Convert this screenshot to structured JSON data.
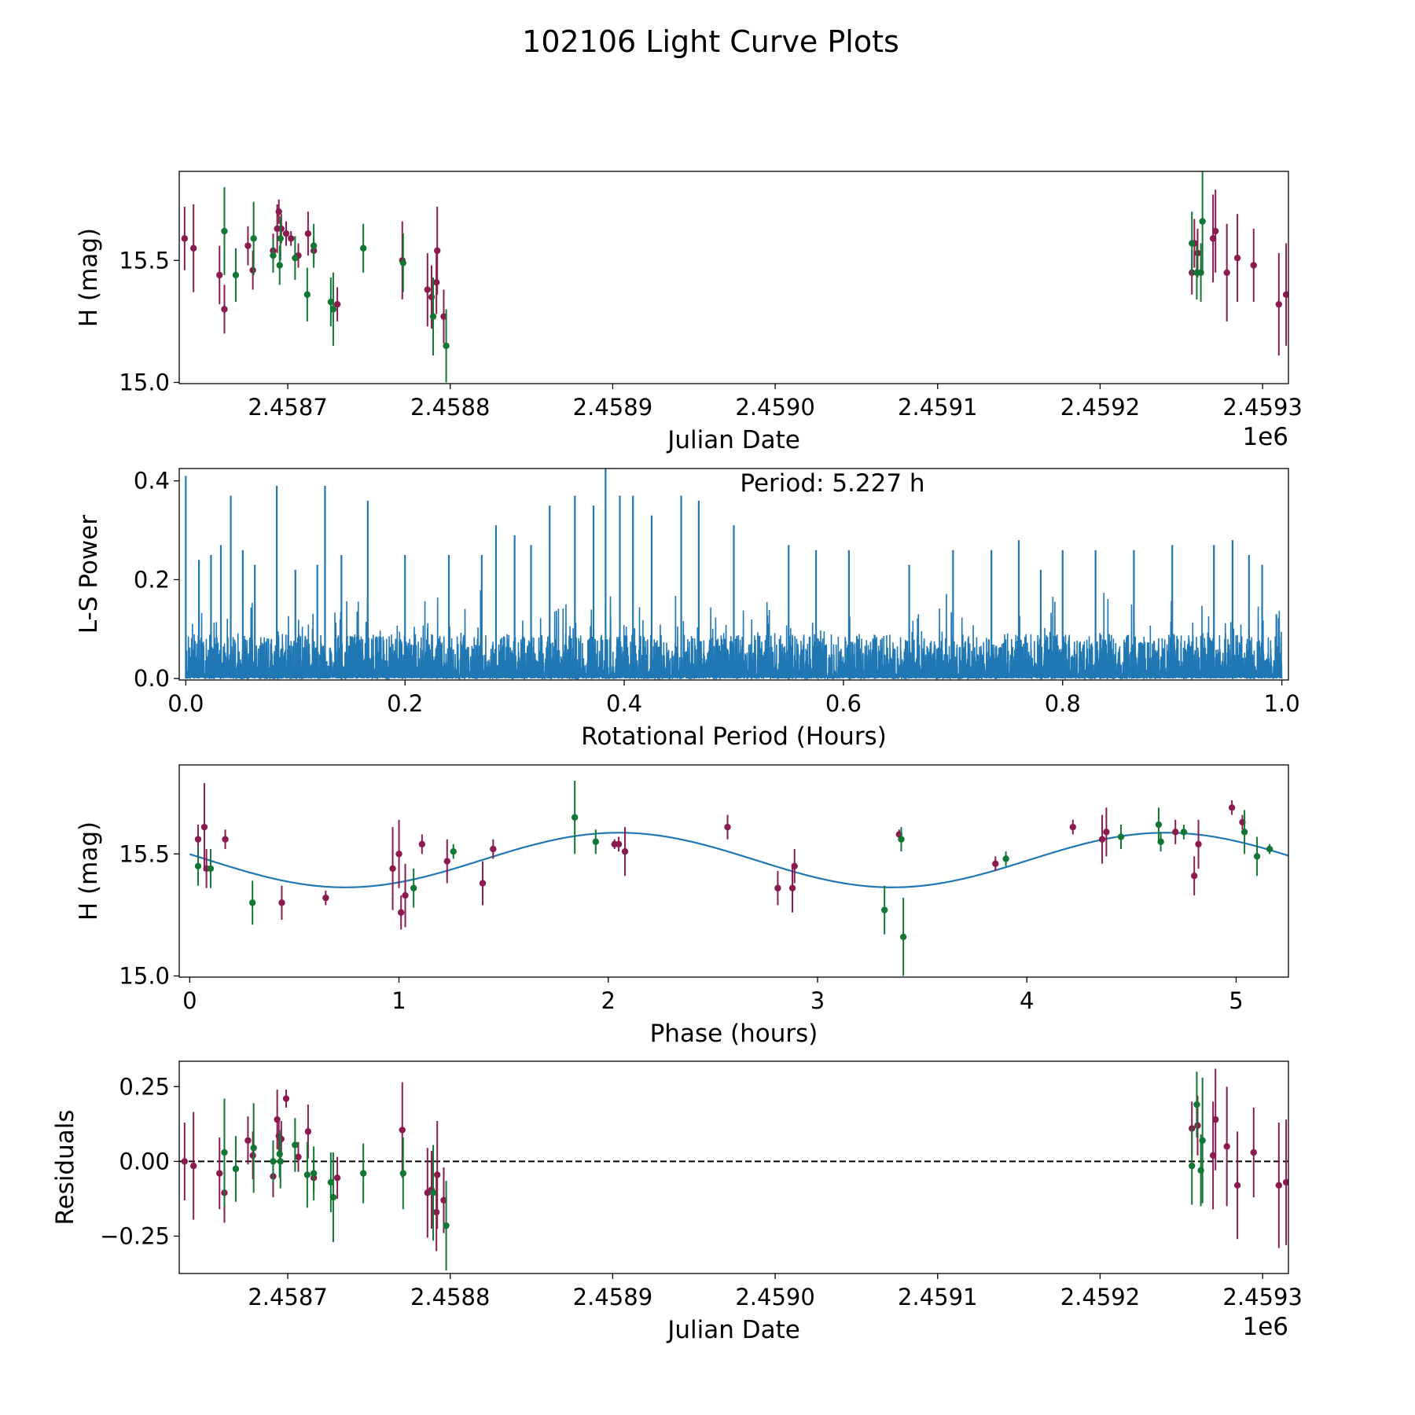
{
  "figure_title": "102106 Light Curve Plots",
  "colors": {
    "maroon": "#8b1a4e",
    "green": "#117733",
    "line": "#1f77b4",
    "axis": "#000000"
  },
  "chart_data": [
    {
      "id": "raw",
      "type": "scatter",
      "xlabel": "Julian Date",
      "ylabel": "H (mag)",
      "offset_label": "1e6",
      "xlim": [
        2458633.2,
        2459315.9
      ],
      "ylim": [
        14.995,
        15.865
      ],
      "xticks": [
        2458700,
        2458800,
        2458900,
        2459000,
        2459100,
        2459200,
        2459300
      ],
      "xtick_labels": [
        "2.4587",
        "2.4588",
        "2.4589",
        "2.4590",
        "2.4591",
        "2.4592",
        "2.4593"
      ],
      "yticks": [
        15.0,
        15.5
      ],
      "ytick_labels": [
        "15.0",
        "15.5"
      ],
      "series": [
        {
          "name": "maroon",
          "color": "maroon",
          "points": [
            [
              2458636.5,
              15.59,
              0.13
            ],
            [
              2458642.0,
              15.55,
              0.18
            ],
            [
              2458658.0,
              15.44,
              0.12
            ],
            [
              2458661.0,
              15.3,
              0.1
            ],
            [
              2458675.5,
              15.56,
              0.08
            ],
            [
              2458678.5,
              15.46,
              0.08
            ],
            [
              2458691.0,
              15.54,
              0.07
            ],
            [
              2458693.5,
              15.63,
              0.1
            ],
            [
              2458694.5,
              15.7,
              0.05
            ],
            [
              2458696.0,
              15.63,
              0.06
            ],
            [
              2458699.0,
              15.61,
              0.05
            ],
            [
              2458702.0,
              15.59,
              0.03
            ],
            [
              2458706.5,
              15.52,
              0.05
            ],
            [
              2458712.5,
              15.61,
              0.09
            ],
            [
              2458716.0,
              15.54,
              0.05
            ],
            [
              2458730.5,
              15.32,
              0.07
            ],
            [
              2458770.5,
              15.5,
              0.16
            ],
            [
              2458786.0,
              15.38,
              0.15
            ],
            [
              2458788.5,
              15.35,
              0.13
            ],
            [
              2458791.5,
              15.41,
              0.13
            ],
            [
              2458792.0,
              15.54,
              0.18
            ],
            [
              2458796.0,
              15.27,
              0.11
            ],
            [
              2459256.5,
              15.45,
              0.09
            ],
            [
              2459258.0,
              15.57,
              0.1
            ],
            [
              2459260.0,
              15.53,
              0.1
            ],
            [
              2459269.5,
              15.59,
              0.18
            ],
            [
              2459271.0,
              15.62,
              0.17
            ],
            [
              2459278.0,
              15.45,
              0.2
            ],
            [
              2459284.5,
              15.51,
              0.18
            ],
            [
              2459294.5,
              15.48,
              0.15
            ],
            [
              2459310.0,
              15.32,
              0.21
            ],
            [
              2459314.5,
              15.36,
              0.21
            ]
          ]
        },
        {
          "name": "green",
          "color": "green",
          "points": [
            [
              2458661.0,
              15.62,
              0.18
            ],
            [
              2458668.0,
              15.44,
              0.11
            ],
            [
              2458679.0,
              15.59,
              0.15
            ],
            [
              2458691.0,
              15.52,
              0.07
            ],
            [
              2458695.0,
              15.48,
              0.08
            ],
            [
              2458695.5,
              15.59,
              0.09
            ],
            [
              2458704.5,
              15.51,
              0.09
            ],
            [
              2458712.0,
              15.36,
              0.11
            ],
            [
              2458716.0,
              15.56,
              0.09
            ],
            [
              2458726.5,
              15.33,
              0.1
            ],
            [
              2458728.0,
              15.3,
              0.15
            ],
            [
              2458746.5,
              15.55,
              0.1
            ],
            [
              2458771.0,
              15.49,
              0.12
            ],
            [
              2458789.5,
              15.27,
              0.16
            ],
            [
              2458797.5,
              15.15,
              0.15
            ],
            [
              2459256.5,
              15.57,
              0.13
            ],
            [
              2459259.5,
              15.45,
              0.11
            ],
            [
              2459262.0,
              15.45,
              0.12
            ],
            [
              2459263.0,
              15.66,
              0.21
            ]
          ]
        }
      ]
    },
    {
      "id": "periodogram",
      "type": "line",
      "xlabel": "Rotational Period (Hours)",
      "ylabel": "L-S Power",
      "annotation": "Period: 5.227 h",
      "xlim": [
        -0.006,
        1.006
      ],
      "ylim": [
        -0.003,
        0.425
      ],
      "xticks": [
        0.0,
        0.2,
        0.4,
        0.6,
        0.8,
        1.0
      ],
      "xtick_labels": [
        "0.0",
        "0.2",
        "0.4",
        "0.6",
        "0.8",
        "1.0"
      ],
      "yticks": [
        0.0,
        0.2,
        0.4
      ],
      "ytick_labels": [
        "0.0",
        "0.2",
        "0.4"
      ],
      "peaks": [
        [
          0.0,
          0.41
        ],
        [
          0.012,
          0.24
        ],
        [
          0.023,
          0.25
        ],
        [
          0.032,
          0.27
        ],
        [
          0.041,
          0.37
        ],
        [
          0.052,
          0.26
        ],
        [
          0.063,
          0.23
        ],
        [
          0.083,
          0.39
        ],
        [
          0.1,
          0.22
        ],
        [
          0.12,
          0.23
        ],
        [
          0.127,
          0.39
        ],
        [
          0.142,
          0.25
        ],
        [
          0.166,
          0.36
        ],
        [
          0.2,
          0.25
        ],
        [
          0.24,
          0.25
        ],
        [
          0.27,
          0.25
        ],
        [
          0.283,
          0.31
        ],
        [
          0.3,
          0.29
        ],
        [
          0.315,
          0.27
        ],
        [
          0.332,
          0.35
        ],
        [
          0.355,
          0.37
        ],
        [
          0.372,
          0.35
        ],
        [
          0.383,
          0.43
        ],
        [
          0.396,
          0.37
        ],
        [
          0.408,
          0.37
        ],
        [
          0.425,
          0.33
        ],
        [
          0.452,
          0.37
        ],
        [
          0.468,
          0.36
        ],
        [
          0.5,
          0.31
        ],
        [
          0.55,
          0.27
        ],
        [
          0.575,
          0.26
        ],
        [
          0.605,
          0.26
        ],
        [
          0.66,
          0.23
        ],
        [
          0.7,
          0.26
        ],
        [
          0.735,
          0.26
        ],
        [
          0.76,
          0.28
        ],
        [
          0.78,
          0.22
        ],
        [
          0.8,
          0.26
        ],
        [
          0.83,
          0.26
        ],
        [
          0.865,
          0.26
        ],
        [
          0.9,
          0.27
        ],
        [
          0.938,
          0.27
        ],
        [
          0.955,
          0.28
        ],
        [
          0.97,
          0.25
        ],
        [
          0.982,
          0.23
        ],
        [
          0.995,
          0.13
        ]
      ]
    },
    {
      "id": "phased",
      "type": "scatter",
      "xlabel": "Phase (hours)",
      "ylabel": "H (mag)",
      "xlim": [
        -0.05,
        5.25
      ],
      "ylim": [
        14.995,
        15.865
      ],
      "xticks": [
        0,
        1,
        2,
        3,
        4,
        5
      ],
      "xtick_labels": [
        "0",
        "1",
        "2",
        "3",
        "4",
        "5"
      ],
      "yticks": [
        15.0,
        15.5
      ],
      "ytick_labels": [
        "15.0",
        "15.5"
      ],
      "model": {
        "type": "sinusoid",
        "mean": 15.475,
        "amplitude": 0.112,
        "period": 2.6135,
        "peak_phase": 2.05
      },
      "series": [
        {
          "name": "maroon",
          "color": "maroon",
          "points": [
            [
              0.04,
              15.56,
              0.06
            ],
            [
              0.07,
              15.61,
              0.18
            ],
            [
              0.08,
              15.44,
              0.08
            ],
            [
              0.17,
              15.56,
              0.04
            ],
            [
              0.44,
              15.3,
              0.07
            ],
            [
              0.65,
              15.32,
              0.03
            ],
            [
              0.97,
              15.44,
              0.17
            ],
            [
              1.0,
              15.5,
              0.14
            ],
            [
              1.01,
              15.26,
              0.07
            ],
            [
              1.03,
              15.33,
              0.13
            ],
            [
              1.11,
              15.54,
              0.04
            ],
            [
              1.23,
              15.47,
              0.09
            ],
            [
              1.4,
              15.38,
              0.09
            ],
            [
              1.45,
              15.52,
              0.04
            ],
            [
              2.03,
              15.54,
              0.02
            ],
            [
              2.05,
              15.54,
              0.03
            ],
            [
              2.08,
              15.51,
              0.1
            ],
            [
              2.57,
              15.61,
              0.05
            ],
            [
              2.81,
              15.36,
              0.07
            ],
            [
              2.88,
              15.36,
              0.1
            ],
            [
              2.89,
              15.45,
              0.07
            ],
            [
              3.39,
              15.58,
              0.02
            ],
            [
              3.85,
              15.46,
              0.03
            ],
            [
              4.22,
              15.61,
              0.03
            ],
            [
              4.36,
              15.56,
              0.1
            ],
            [
              4.38,
              15.59,
              0.1
            ],
            [
              4.71,
              15.59,
              0.05
            ],
            [
              4.8,
              15.41,
              0.08
            ],
            [
              4.82,
              15.54,
              0.1
            ],
            [
              4.98,
              15.69,
              0.03
            ],
            [
              5.03,
              15.63,
              0.03
            ]
          ]
        },
        {
          "name": "green",
          "color": "green",
          "points": [
            [
              0.04,
              15.45,
              0.08
            ],
            [
              0.1,
              15.44,
              0.08
            ],
            [
              0.3,
              15.3,
              0.09
            ],
            [
              1.07,
              15.36,
              0.08
            ],
            [
              1.26,
              15.51,
              0.03
            ],
            [
              1.84,
              15.65,
              0.15
            ],
            [
              1.94,
              15.55,
              0.05
            ],
            [
              3.32,
              15.27,
              0.1
            ],
            [
              3.4,
              15.56,
              0.05
            ],
            [
              3.41,
              15.16,
              0.16
            ],
            [
              3.9,
              15.48,
              0.03
            ],
            [
              4.45,
              15.57,
              0.05
            ],
            [
              4.63,
              15.62,
              0.07
            ],
            [
              4.64,
              15.55,
              0.04
            ],
            [
              4.75,
              15.59,
              0.03
            ],
            [
              5.04,
              15.59,
              0.09
            ],
            [
              5.1,
              15.49,
              0.08
            ],
            [
              5.16,
              15.52,
              0.02
            ]
          ]
        }
      ]
    },
    {
      "id": "residuals",
      "type": "scatter",
      "xlabel": "Julian Date",
      "ylabel": "Residuals",
      "offset_label": "1e6",
      "xlim": [
        2458633.2,
        2459315.9
      ],
      "ylim": [
        -0.375,
        0.335
      ],
      "xticks": [
        2458700,
        2458800,
        2458900,
        2459000,
        2459100,
        2459200,
        2459300
      ],
      "xtick_labels": [
        "2.4587",
        "2.4588",
        "2.4589",
        "2.4590",
        "2.4591",
        "2.4592",
        "2.4593"
      ],
      "yticks": [
        -0.25,
        0.0,
        0.25
      ],
      "ytick_labels": [
        "−0.25",
        "0.00",
        "0.25"
      ],
      "zero_line": 0.0,
      "series": [
        {
          "name": "maroon",
          "color": "maroon",
          "points": [
            [
              2458636.5,
              0.0,
              0.13
            ],
            [
              2458642.0,
              -0.015,
              0.18
            ],
            [
              2458658.0,
              -0.04,
              0.12
            ],
            [
              2458661.0,
              -0.105,
              0.1
            ],
            [
              2458675.5,
              0.07,
              0.08
            ],
            [
              2458678.5,
              0.02,
              0.08
            ],
            [
              2458691.0,
              -0.05,
              0.07
            ],
            [
              2458693.5,
              0.14,
              0.1
            ],
            [
              2458694.5,
              0.085,
              0.05
            ],
            [
              2458696.0,
              0.075,
              0.06
            ],
            [
              2458699.0,
              0.21,
              0.03
            ],
            [
              2458706.5,
              0.015,
              0.05
            ],
            [
              2458712.5,
              0.1,
              0.09
            ],
            [
              2458716.0,
              -0.055,
              0.05
            ],
            [
              2458730.5,
              -0.055,
              0.07
            ],
            [
              2458770.5,
              0.105,
              0.16
            ],
            [
              2458786.0,
              -0.105,
              0.15
            ],
            [
              2458788.5,
              -0.095,
              0.13
            ],
            [
              2458791.5,
              -0.17,
              0.13
            ],
            [
              2458792.0,
              -0.045,
              0.18
            ],
            [
              2458796.0,
              -0.13,
              0.11
            ],
            [
              2459256.5,
              0.11,
              0.09
            ],
            [
              2459260.0,
              0.12,
              0.1
            ],
            [
              2459269.5,
              0.02,
              0.18
            ],
            [
              2459271.0,
              0.14,
              0.17
            ],
            [
              2459278.0,
              0.05,
              0.2
            ],
            [
              2459284.5,
              -0.08,
              0.18
            ],
            [
              2459294.5,
              0.03,
              0.15
            ],
            [
              2459310.0,
              -0.08,
              0.21
            ],
            [
              2459314.5,
              -0.07,
              0.21
            ]
          ]
        },
        {
          "name": "green",
          "color": "green",
          "points": [
            [
              2458661.0,
              0.03,
              0.18
            ],
            [
              2458668.0,
              -0.025,
              0.11
            ],
            [
              2458679.0,
              0.045,
              0.15
            ],
            [
              2458691.0,
              0.0,
              0.07
            ],
            [
              2458695.0,
              0.025,
              0.08
            ],
            [
              2458695.5,
              0.0,
              0.09
            ],
            [
              2458704.5,
              0.055,
              0.09
            ],
            [
              2458712.0,
              -0.045,
              0.11
            ],
            [
              2458716.0,
              -0.04,
              0.09
            ],
            [
              2458726.5,
              -0.07,
              0.1
            ],
            [
              2458728.0,
              -0.12,
              0.15
            ],
            [
              2458746.5,
              -0.04,
              0.1
            ],
            [
              2458771.0,
              -0.04,
              0.12
            ],
            [
              2458789.5,
              -0.105,
              0.16
            ],
            [
              2458797.5,
              -0.215,
              0.15
            ],
            [
              2459256.5,
              -0.015,
              0.13
            ],
            [
              2459259.5,
              0.19,
              0.11
            ],
            [
              2459262.0,
              -0.03,
              0.12
            ],
            [
              2459263.0,
              0.07,
              0.21
            ]
          ]
        }
      ]
    }
  ]
}
